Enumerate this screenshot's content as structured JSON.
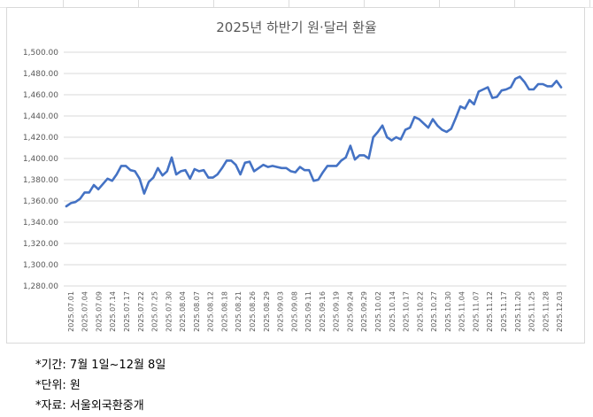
{
  "chart_data": {
    "type": "line",
    "title": "2025년 하반기 원·달러 환율",
    "xlabel": "",
    "ylabel": "",
    "ylim": [
      1280,
      1500
    ],
    "y_ticks": [
      "1,280.00",
      "1,300.00",
      "1,320.00",
      "1,340.00",
      "1,360.00",
      "1,380.00",
      "1,400.00",
      "1,420.00",
      "1,440.00",
      "1,460.00",
      "1,480.00",
      "1,500.00"
    ],
    "x_tick_labels": [
      "2025.07.01",
      "2025.07.04",
      "2025.07.09",
      "2025.07.14",
      "2025.07.17",
      "2025.07.22",
      "2025.07.25",
      "2025.07.30",
      "2025.08.04",
      "2025.08.07",
      "2025.08.12",
      "2025.08.18",
      "2025.08.21",
      "2025.08.26",
      "2025.08.29",
      "2025.09.03",
      "2025.09.08",
      "2025.09.11",
      "2025.09.16",
      "2025.09.19",
      "2025.09.24",
      "2025.09.29",
      "2025.10.02",
      "2025.10.14",
      "2025.10.17",
      "2025.10.22",
      "2025.10.27",
      "2025.10.30",
      "2025.11.04",
      "2025.11.07",
      "2025.11.12",
      "2025.11.17",
      "2025.11.20",
      "2025.11.25",
      "2025.11.28",
      "2025.12.03"
    ],
    "grid": true,
    "legend": "none",
    "line_color": "#4472C4",
    "series": [
      {
        "values": [
          1355,
          1358,
          1359,
          1362,
          1368,
          1368,
          1375,
          1371,
          1376,
          1381,
          1379,
          1385,
          1393,
          1393,
          1389,
          1388,
          1381,
          1367,
          1378,
          1382,
          1391,
          1384,
          1388,
          1401,
          1385,
          1388,
          1389,
          1381,
          1390,
          1388,
          1389,
          1382,
          1382,
          1385,
          1391,
          1398,
          1398,
          1394,
          1385,
          1396,
          1397,
          1388,
          1391,
          1394,
          1392,
          1393,
          1392,
          1391,
          1391,
          1388,
          1387,
          1392,
          1389,
          1389,
          1379,
          1380,
          1387,
          1393,
          1393,
          1393,
          1398,
          1401,
          1412,
          1399,
          1403,
          1403,
          1400,
          1420,
          1425,
          1431,
          1420,
          1417,
          1420,
          1418,
          1427,
          1429,
          1439,
          1437,
          1433,
          1429,
          1437,
          1431,
          1427,
          1425,
          1428,
          1438,
          1449,
          1447,
          1455,
          1451,
          1463,
          1465,
          1467,
          1457,
          1458,
          1464,
          1465,
          1467,
          1475,
          1477,
          1472,
          1465,
          1465,
          1470,
          1470,
          1468,
          1468,
          1473,
          1467
        ]
      }
    ]
  },
  "notes": {
    "period": "*기간: 7월 1일~12월 8일",
    "unit": "*단위: 원",
    "source": "*자료: 서울외국환중개"
  }
}
